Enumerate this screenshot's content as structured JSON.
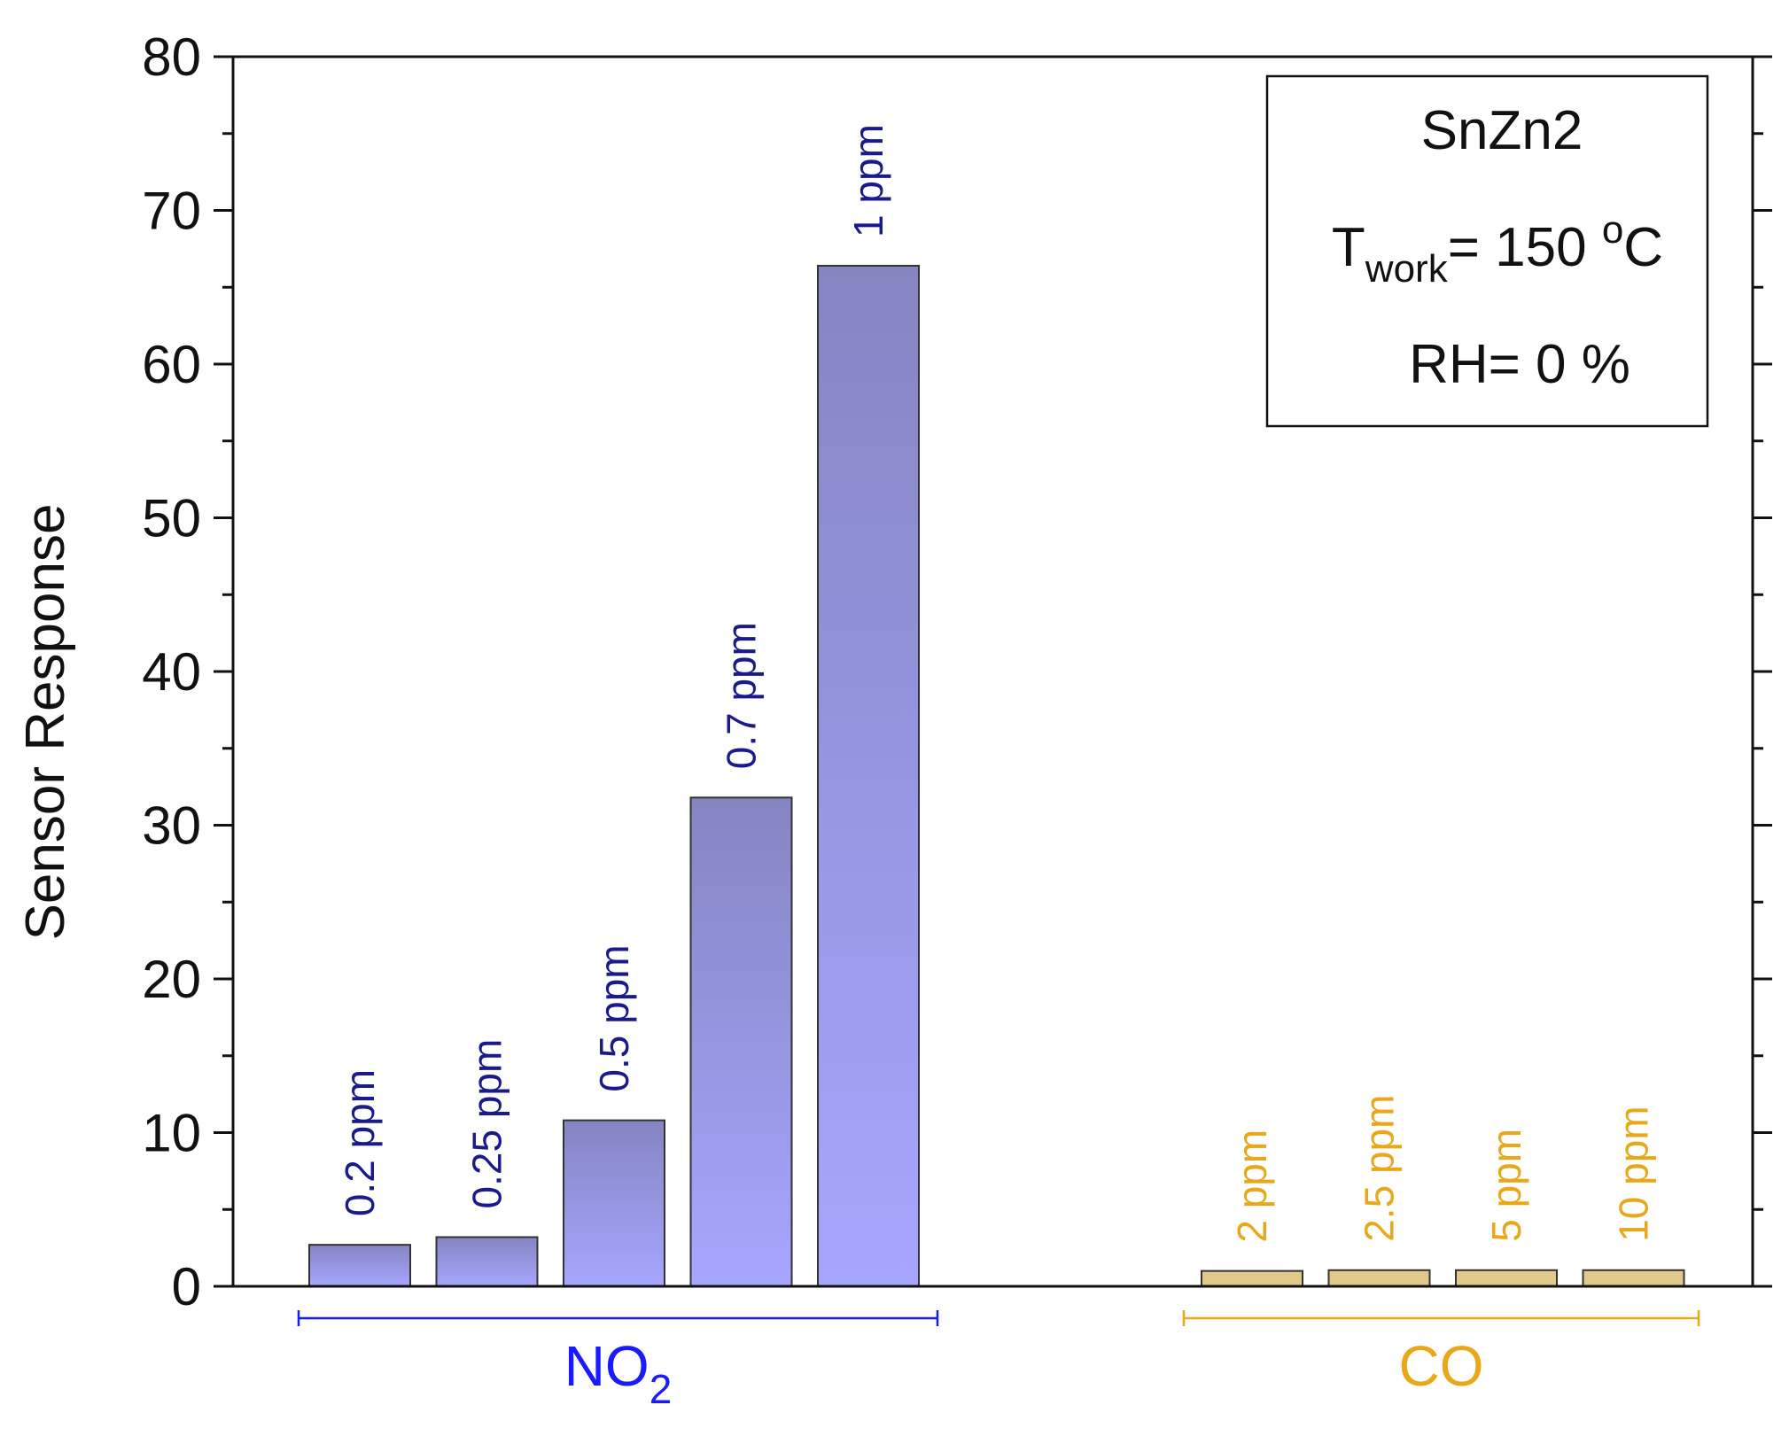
{
  "chart_data": {
    "type": "bar",
    "ylabel": "Sensor Response",
    "ylim": [
      0,
      80
    ],
    "yticks": [
      0,
      10,
      20,
      30,
      40,
      50,
      60,
      70,
      80
    ],
    "grid": false,
    "groups": [
      {
        "name": "NO2",
        "label_main": "NO",
        "label_sub": "2",
        "color": "#1a1aff",
        "bar_top_color": "#8585c2",
        "bar_bottom_color": "#a6a6ff",
        "annotation_color": "#1a1a8c",
        "categories": [
          "0.2 ppm",
          "0.25 ppm",
          "0.5 ppm",
          "0.7 ppm",
          "1 ppm"
        ],
        "values": [
          2.7,
          3.2,
          10.8,
          31.8,
          66.4
        ]
      },
      {
        "name": "CO",
        "label_main": "CO",
        "label_sub": "",
        "color": "#e8a81a",
        "bar_top_color": "#e2c98a",
        "bar_bottom_color": "#e2c98a",
        "annotation_color": "#e8a81a",
        "categories": [
          "2 ppm",
          "2.5 ppm",
          "5 ppm",
          "10 ppm"
        ],
        "values": [
          1.0,
          1.05,
          1.05,
          1.05
        ]
      }
    ],
    "legend_box": {
      "position": "top-right",
      "sample": "SnZn2",
      "temperature_prefix": "T",
      "temperature_sub": "work",
      "temperature_value": "= 150 ",
      "temperature_sup": "o",
      "temperature_unit": "C",
      "humidity": "RH= 0 %"
    }
  }
}
